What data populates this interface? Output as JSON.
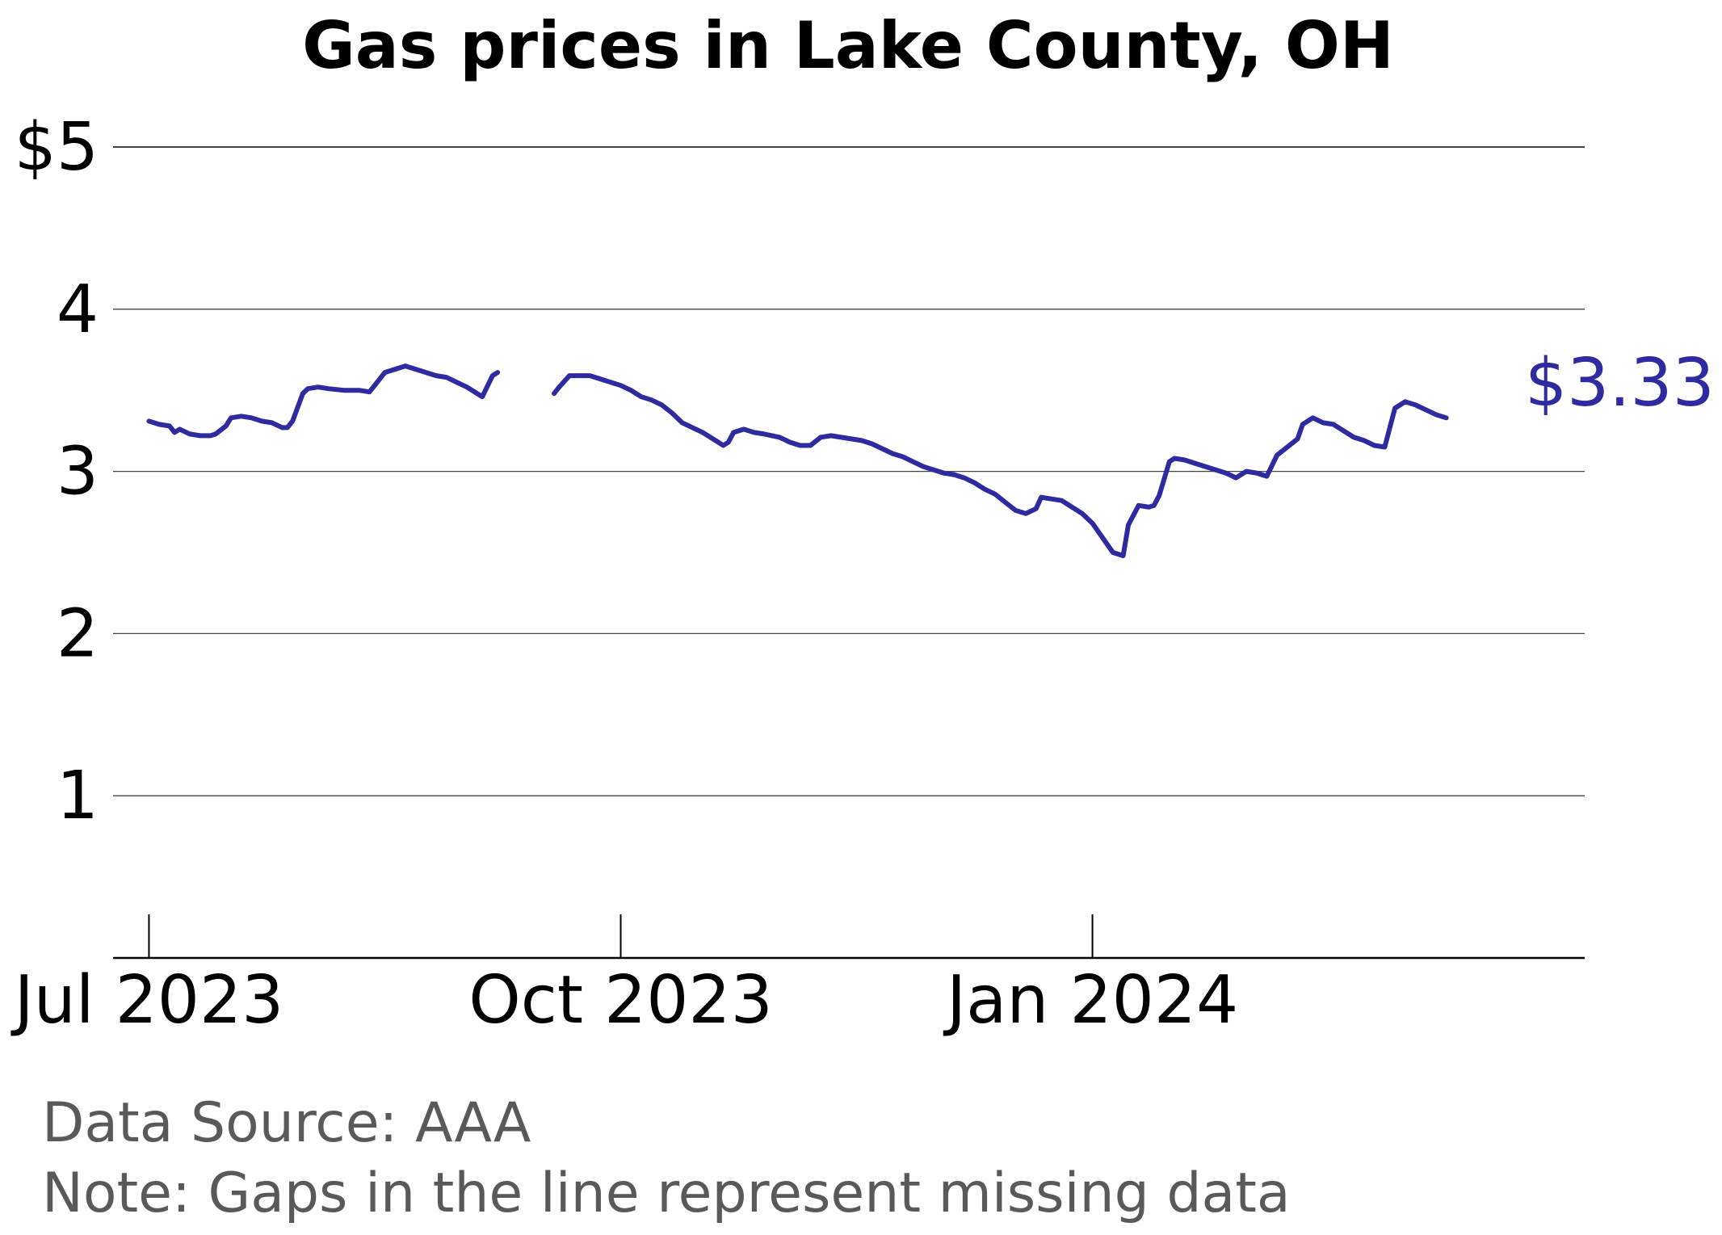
{
  "colors": {
    "line": "#2e2aa0",
    "grid": "#444444",
    "axis": "#000000",
    "note": "#595959"
  },
  "chart_data": {
    "type": "line",
    "title": "Gas prices in Lake County, OH",
    "xlabel": "",
    "ylabel": "",
    "ylim": [
      0,
      5
    ],
    "xlim": [
      "2023-06-24",
      "2024-04-06"
    ],
    "y_ticks": [
      1,
      2,
      3,
      4,
      5
    ],
    "y_tick_labels": [
      "1",
      "2",
      "3",
      "4",
      "$5"
    ],
    "x_ticks": [
      "2023-07-01",
      "2023-10-01",
      "2024-01-01"
    ],
    "x_tick_labels": [
      "Jul 2023",
      "Oct 2023",
      "Jan 2024"
    ],
    "grid": "horizontal",
    "end_label": "$3.33",
    "series": [
      {
        "segments": [
          [
            [
              "2023-07-01",
              3.31
            ],
            [
              "2023-07-03",
              3.29
            ],
            [
              "2023-07-05",
              3.28
            ],
            [
              "2023-07-06",
              3.24
            ],
            [
              "2023-07-07",
              3.26
            ],
            [
              "2023-07-09",
              3.23
            ],
            [
              "2023-07-11",
              3.22
            ],
            [
              "2023-07-13",
              3.22
            ],
            [
              "2023-07-14",
              3.23
            ],
            [
              "2023-07-16",
              3.28
            ],
            [
              "2023-07-17",
              3.33
            ],
            [
              "2023-07-19",
              3.34
            ],
            [
              "2023-07-21",
              3.33
            ],
            [
              "2023-07-23",
              3.31
            ],
            [
              "2023-07-25",
              3.3
            ],
            [
              "2023-07-27",
              3.27
            ],
            [
              "2023-07-28",
              3.27
            ],
            [
              "2023-07-29",
              3.31
            ],
            [
              "2023-07-31",
              3.48
            ],
            [
              "2023-08-01",
              3.51
            ],
            [
              "2023-08-03",
              3.52
            ],
            [
              "2023-08-05",
              3.51
            ],
            [
              "2023-08-08",
              3.5
            ],
            [
              "2023-08-11",
              3.5
            ],
            [
              "2023-08-13",
              3.49
            ],
            [
              "2023-08-14",
              3.53
            ],
            [
              "2023-08-16",
              3.61
            ],
            [
              "2023-08-18",
              3.63
            ],
            [
              "2023-08-20",
              3.65
            ],
            [
              "2023-08-22",
              3.63
            ],
            [
              "2023-08-24",
              3.61
            ],
            [
              "2023-08-26",
              3.59
            ],
            [
              "2023-08-28",
              3.58
            ],
            [
              "2023-08-30",
              3.55
            ],
            [
              "2023-09-01",
              3.52
            ],
            [
              "2023-09-03",
              3.48
            ],
            [
              "2023-09-04",
              3.46
            ],
            [
              "2023-09-06",
              3.59
            ],
            [
              "2023-09-07",
              3.61
            ]
          ],
          [
            [
              "2023-09-18",
              3.48
            ],
            [
              "2023-09-19",
              3.52
            ],
            [
              "2023-09-21",
              3.59
            ],
            [
              "2023-09-23",
              3.59
            ],
            [
              "2023-09-25",
              3.59
            ],
            [
              "2023-09-27",
              3.57
            ],
            [
              "2023-09-29",
              3.55
            ],
            [
              "2023-10-01",
              3.53
            ],
            [
              "2023-10-03",
              3.5
            ],
            [
              "2023-10-05",
              3.46
            ],
            [
              "2023-10-07",
              3.44
            ],
            [
              "2023-10-09",
              3.41
            ],
            [
              "2023-10-11",
              3.36
            ],
            [
              "2023-10-13",
              3.3
            ],
            [
              "2023-10-15",
              3.27
            ],
            [
              "2023-10-17",
              3.24
            ],
            [
              "2023-10-19",
              3.2
            ],
            [
              "2023-10-21",
              3.16
            ],
            [
              "2023-10-22",
              3.18
            ],
            [
              "2023-10-23",
              3.24
            ],
            [
              "2023-10-25",
              3.26
            ],
            [
              "2023-10-27",
              3.24
            ],
            [
              "2023-10-29",
              3.23
            ],
            [
              "2023-11-01",
              3.21
            ],
            [
              "2023-11-03",
              3.18
            ],
            [
              "2023-11-05",
              3.16
            ],
            [
              "2023-11-07",
              3.16
            ],
            [
              "2023-11-09",
              3.21
            ],
            [
              "2023-11-11",
              3.22
            ],
            [
              "2023-11-13",
              3.21
            ],
            [
              "2023-11-15",
              3.2
            ],
            [
              "2023-11-17",
              3.19
            ],
            [
              "2023-11-19",
              3.17
            ],
            [
              "2023-11-21",
              3.14
            ],
            [
              "2023-11-23",
              3.11
            ],
            [
              "2023-11-25",
              3.09
            ],
            [
              "2023-11-27",
              3.06
            ],
            [
              "2023-11-29",
              3.03
            ],
            [
              "2023-12-01",
              3.01
            ],
            [
              "2023-12-03",
              2.99
            ],
            [
              "2023-12-05",
              2.98
            ],
            [
              "2023-12-07",
              2.96
            ],
            [
              "2023-12-09",
              2.93
            ],
            [
              "2023-12-11",
              2.89
            ],
            [
              "2023-12-13",
              2.86
            ],
            [
              "2023-12-15",
              2.81
            ],
            [
              "2023-12-17",
              2.76
            ],
            [
              "2023-12-19",
              2.74
            ],
            [
              "2023-12-21",
              2.77
            ],
            [
              "2023-12-22",
              2.84
            ],
            [
              "2023-12-24",
              2.83
            ],
            [
              "2023-12-26",
              2.82
            ],
            [
              "2023-12-28",
              2.78
            ],
            [
              "2023-12-30",
              2.74
            ],
            [
              "2024-01-01",
              2.68
            ],
            [
              "2024-01-03",
              2.59
            ],
            [
              "2024-01-05",
              2.5
            ],
            [
              "2024-01-07",
              2.48
            ],
            [
              "2024-01-08",
              2.67
            ],
            [
              "2024-01-10",
              2.79
            ],
            [
              "2024-01-12",
              2.78
            ],
            [
              "2024-01-13",
              2.79
            ],
            [
              "2024-01-14",
              2.85
            ],
            [
              "2024-01-16",
              3.06
            ],
            [
              "2024-01-17",
              3.08
            ],
            [
              "2024-01-19",
              3.07
            ],
            [
              "2024-01-21",
              3.05
            ],
            [
              "2024-01-23",
              3.03
            ],
            [
              "2024-01-25",
              3.01
            ],
            [
              "2024-01-27",
              2.99
            ],
            [
              "2024-01-29",
              2.96
            ],
            [
              "2024-01-31",
              3.0
            ],
            [
              "2024-02-02",
              2.99
            ],
            [
              "2024-02-04",
              2.97
            ],
            [
              "2024-02-06",
              3.1
            ],
            [
              "2024-02-08",
              3.15
            ],
            [
              "2024-02-10",
              3.2
            ],
            [
              "2024-02-11",
              3.29
            ],
            [
              "2024-02-13",
              3.33
            ],
            [
              "2024-02-15",
              3.3
            ],
            [
              "2024-02-17",
              3.29
            ],
            [
              "2024-02-19",
              3.25
            ],
            [
              "2024-02-21",
              3.21
            ],
            [
              "2024-02-23",
              3.19
            ],
            [
              "2024-02-25",
              3.16
            ],
            [
              "2024-02-27",
              3.15
            ],
            [
              "2024-02-29",
              3.39
            ],
            [
              "2024-03-02",
              3.43
            ],
            [
              "2024-03-04",
              3.41
            ],
            [
              "2024-03-06",
              3.38
            ],
            [
              "2024-03-08",
              3.35
            ],
            [
              "2024-03-10",
              3.33
            ]
          ]
        ]
      }
    ]
  },
  "notes": {
    "source": "Data Source: AAA",
    "gaps": "Note: Gaps in the line represent missing data"
  }
}
